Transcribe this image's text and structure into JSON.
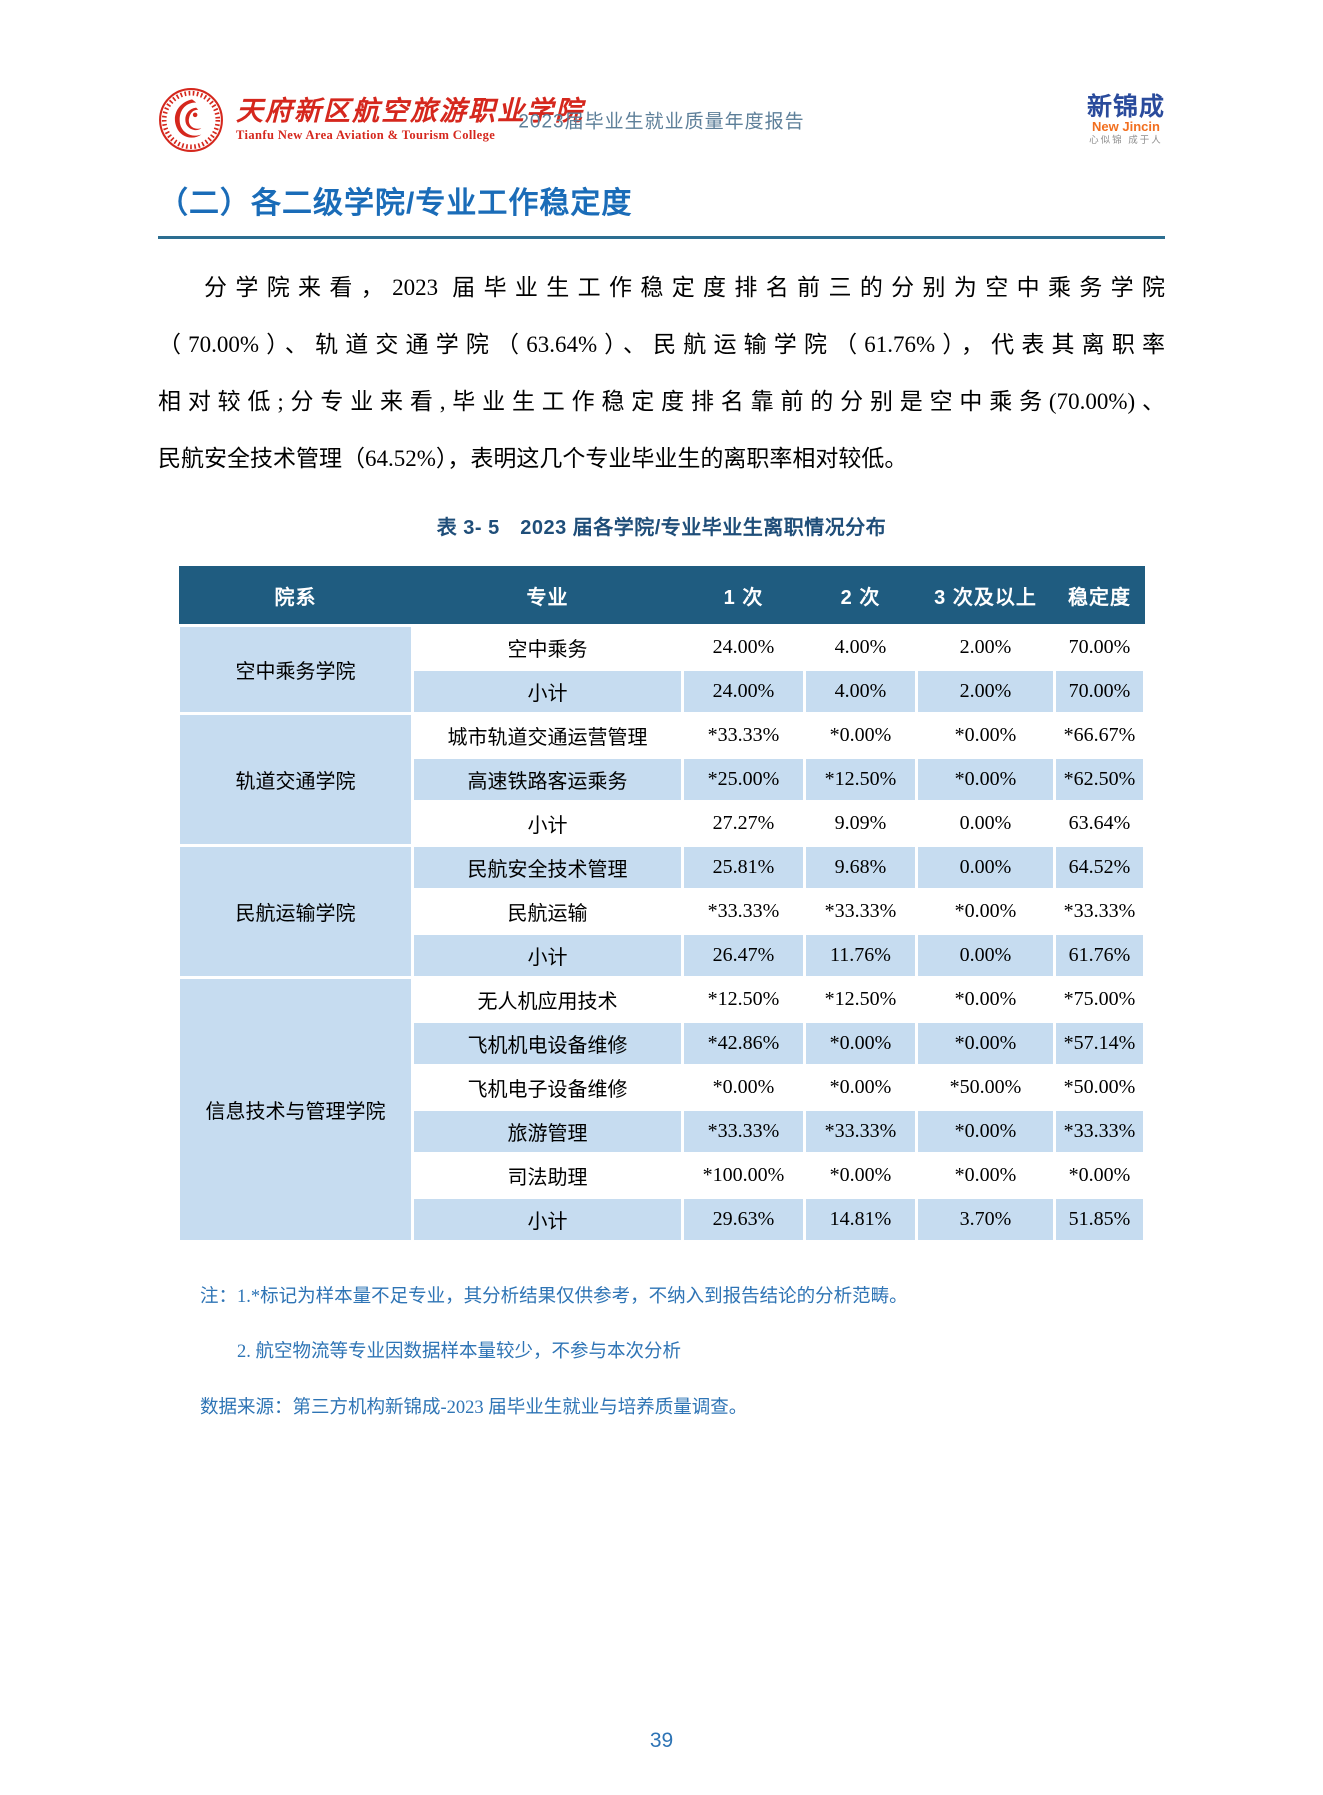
{
  "header": {
    "school_name": "天府新区航空旅游职业学院",
    "school_name_en": "Tianfu New Area Aviation & Tourism College",
    "report_title": "2023届毕业生就业质量年度报告",
    "brand": {
      "name": "新锦成",
      "latin": "New Jincin",
      "tagline": "心似锦 成于人"
    }
  },
  "section_heading": "（二）各二级学院/专业工作稳定度",
  "paragraph": {
    "lines": [
      "分学院来看，2023 届毕业生工作稳定度排名前三的分别为空中乘务学院",
      "（70.00%）、轨道交通学院（63.64%）、民航运输学院（61.76%），代表其离职率",
      "相对较低;分专业来看,毕业生工作稳定度排名靠前的分别是空中乘务(70.00%)、",
      "民航安全技术管理（64.52%），表明这几个专业毕业生的离职率相对较低。"
    ]
  },
  "table": {
    "title": "表 3- 5　2023 届各学院/专业毕业生离职情况分布",
    "columns": [
      "院系",
      "专业",
      "1 次",
      "2 次",
      "3 次及以上",
      "稳定度"
    ],
    "groups": [
      {
        "college": "空中乘务学院",
        "rows": [
          [
            "空中乘务",
            "24.00%",
            "4.00%",
            "2.00%",
            "70.00%"
          ],
          [
            "小计",
            "24.00%",
            "4.00%",
            "2.00%",
            "70.00%"
          ]
        ]
      },
      {
        "college": "轨道交通学院",
        "rows": [
          [
            "城市轨道交通运营管理",
            "*33.33%",
            "*0.00%",
            "*0.00%",
            "*66.67%"
          ],
          [
            "高速铁路客运乘务",
            "*25.00%",
            "*12.50%",
            "*0.00%",
            "*62.50%"
          ],
          [
            "小计",
            "27.27%",
            "9.09%",
            "0.00%",
            "63.64%"
          ]
        ]
      },
      {
        "college": "民航运输学院",
        "rows": [
          [
            "民航安全技术管理",
            "25.81%",
            "9.68%",
            "0.00%",
            "64.52%"
          ],
          [
            "民航运输",
            "*33.33%",
            "*33.33%",
            "*0.00%",
            "*33.33%"
          ],
          [
            "小计",
            "26.47%",
            "11.76%",
            "0.00%",
            "61.76%"
          ]
        ]
      },
      {
        "college": "信息技术与管理学院",
        "rows": [
          [
            "无人机应用技术",
            "*12.50%",
            "*12.50%",
            "*0.00%",
            "*75.00%"
          ],
          [
            "飞机机电设备维修",
            "*42.86%",
            "*0.00%",
            "*0.00%",
            "*57.14%"
          ],
          [
            "飞机电子设备维修",
            "*0.00%",
            "*0.00%",
            "*50.00%",
            "*50.00%"
          ],
          [
            "旅游管理",
            "*33.33%",
            "*33.33%",
            "*0.00%",
            "*33.33%"
          ],
          [
            "司法助理",
            "*100.00%",
            "*0.00%",
            "*0.00%",
            "*0.00%"
          ],
          [
            "小计",
            "29.63%",
            "14.81%",
            "3.70%",
            "51.85%"
          ]
        ]
      }
    ]
  },
  "notes": [
    "注：1.*标记为样本量不足专业，其分析结果仅供参考，不纳入到报告结论的分析范畴。",
    "2. 航空物流等专业因数据样本量较少，不参与本次分析"
  ],
  "source": "数据来源：第三方机构新锦成-2023 届毕业生就业与培养质量调查。",
  "page_number": "39",
  "colors": {
    "accent_blue": "#1A6CB8",
    "rule_blue": "#2C6E91",
    "table_title_blue": "#1F4E79",
    "table_header_bg": "#1F5C80",
    "table_stripe_blue": "#C6DCF0",
    "note_blue": "#2E74B5",
    "brand_red": "#D5271D",
    "brand_navy": "#2A4B9C",
    "brand_orange": "#F26F1F",
    "header_gray_blue": "#5D7F99"
  }
}
